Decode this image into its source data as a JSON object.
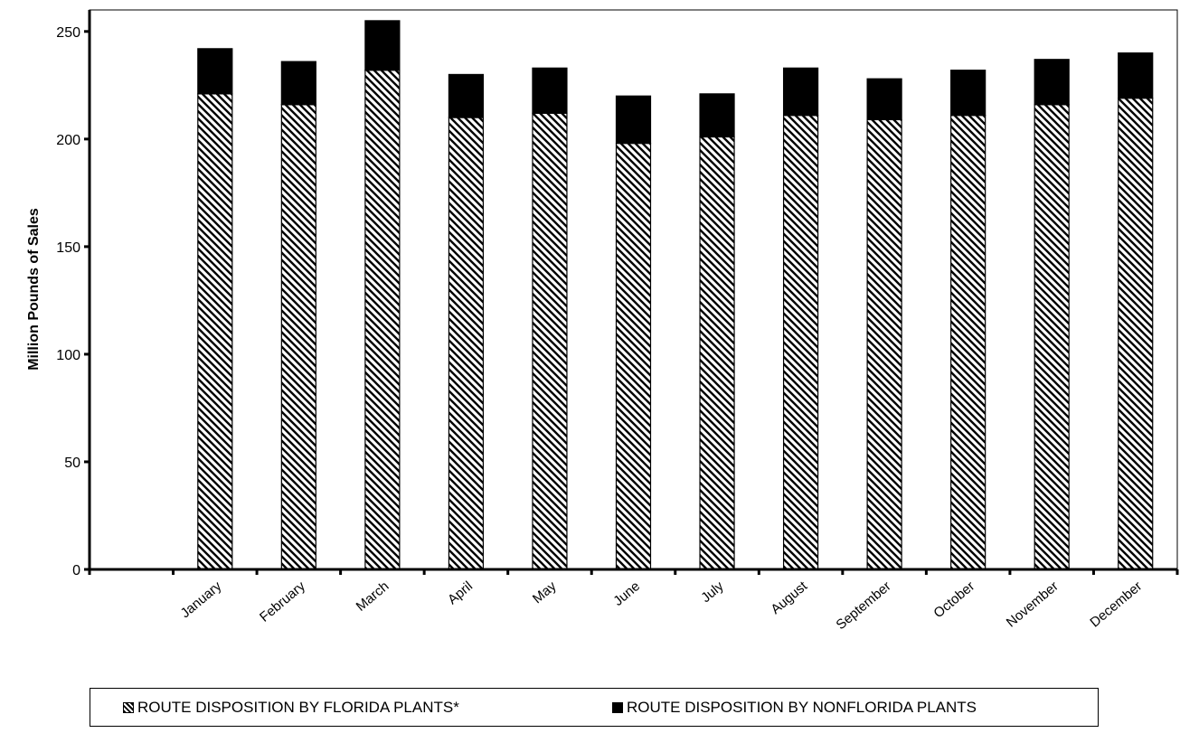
{
  "chart_data": {
    "type": "bar",
    "stacked": true,
    "categories": [
      "January",
      "February",
      "March",
      "April",
      "May",
      "June",
      "July",
      "August",
      "September",
      "October",
      "November",
      "December"
    ],
    "series": [
      {
        "name": "ROUTE DISPOSITION BY FLORIDA PLANTS*",
        "pattern": "diagonal-hatch",
        "color": "#000000",
        "values": [
          221,
          216,
          232,
          210,
          212,
          198,
          201,
          211,
          209,
          211,
          216,
          219
        ]
      },
      {
        "name": "ROUTE DISPOSITION BY NONFLORIDA PLANTS",
        "pattern": "solid",
        "color": "#000000",
        "values": [
          21,
          20,
          23,
          20,
          21,
          22,
          20,
          22,
          19,
          21,
          21,
          21
        ]
      }
    ],
    "ylabel": "Million Pounds of Sales",
    "xlabel": "",
    "ylim": [
      0,
      260
    ],
    "yticks": [
      0,
      50,
      100,
      150,
      200,
      250
    ],
    "grid": false,
    "legend_position": "bottom"
  },
  "legend": {
    "items": [
      {
        "label": "ROUTE DISPOSITION BY FLORIDA PLANTS*"
      },
      {
        "label": "ROUTE DISPOSITION BY NONFLORIDA PLANTS"
      }
    ]
  }
}
